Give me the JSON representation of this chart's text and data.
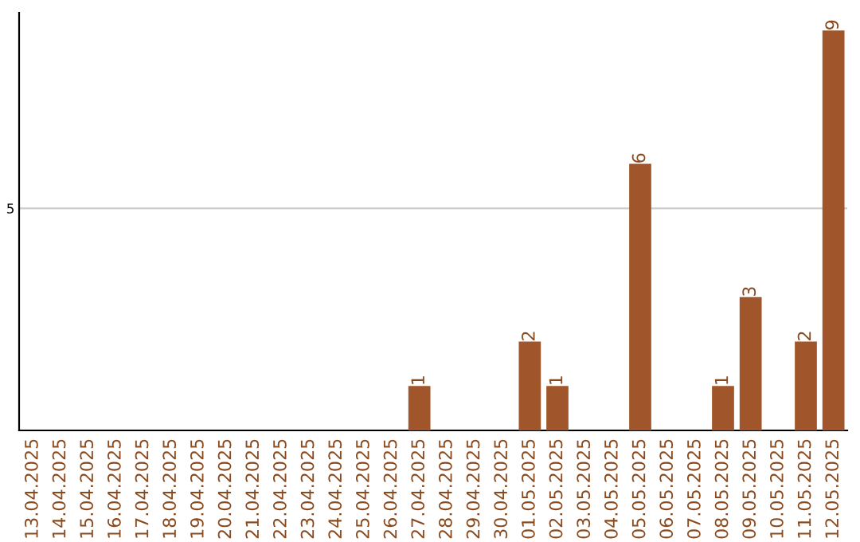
{
  "chart_data": {
    "type": "bar",
    "categories": [
      "13.04.2025",
      "14.04.2025",
      "15.04.2025",
      "16.04.2025",
      "17.04.2025",
      "18.04.2025",
      "19.04.2025",
      "20.04.2025",
      "21.04.2025",
      "22.04.2025",
      "23.04.2025",
      "24.04.2025",
      "25.04.2025",
      "26.04.2025",
      "27.04.2025",
      "28.04.2025",
      "29.04.2025",
      "30.04.2025",
      "01.05.2025",
      "02.05.2025",
      "03.05.2025",
      "04.05.2025",
      "05.05.2025",
      "06.05.2025",
      "07.05.2025",
      "08.05.2025",
      "09.05.2025",
      "10.05.2025",
      "11.05.2025",
      "12.05.2025"
    ],
    "values": [
      null,
      null,
      null,
      null,
      null,
      null,
      null,
      null,
      null,
      null,
      null,
      null,
      null,
      null,
      1,
      null,
      null,
      null,
      2,
      1,
      null,
      null,
      6,
      null,
      null,
      1,
      3,
      null,
      2,
      9
    ],
    "data_labels": true,
    "color": "#a0562a",
    "ylim": [
      0,
      9.4
    ],
    "yticks": [
      5
    ],
    "grid": "y"
  }
}
